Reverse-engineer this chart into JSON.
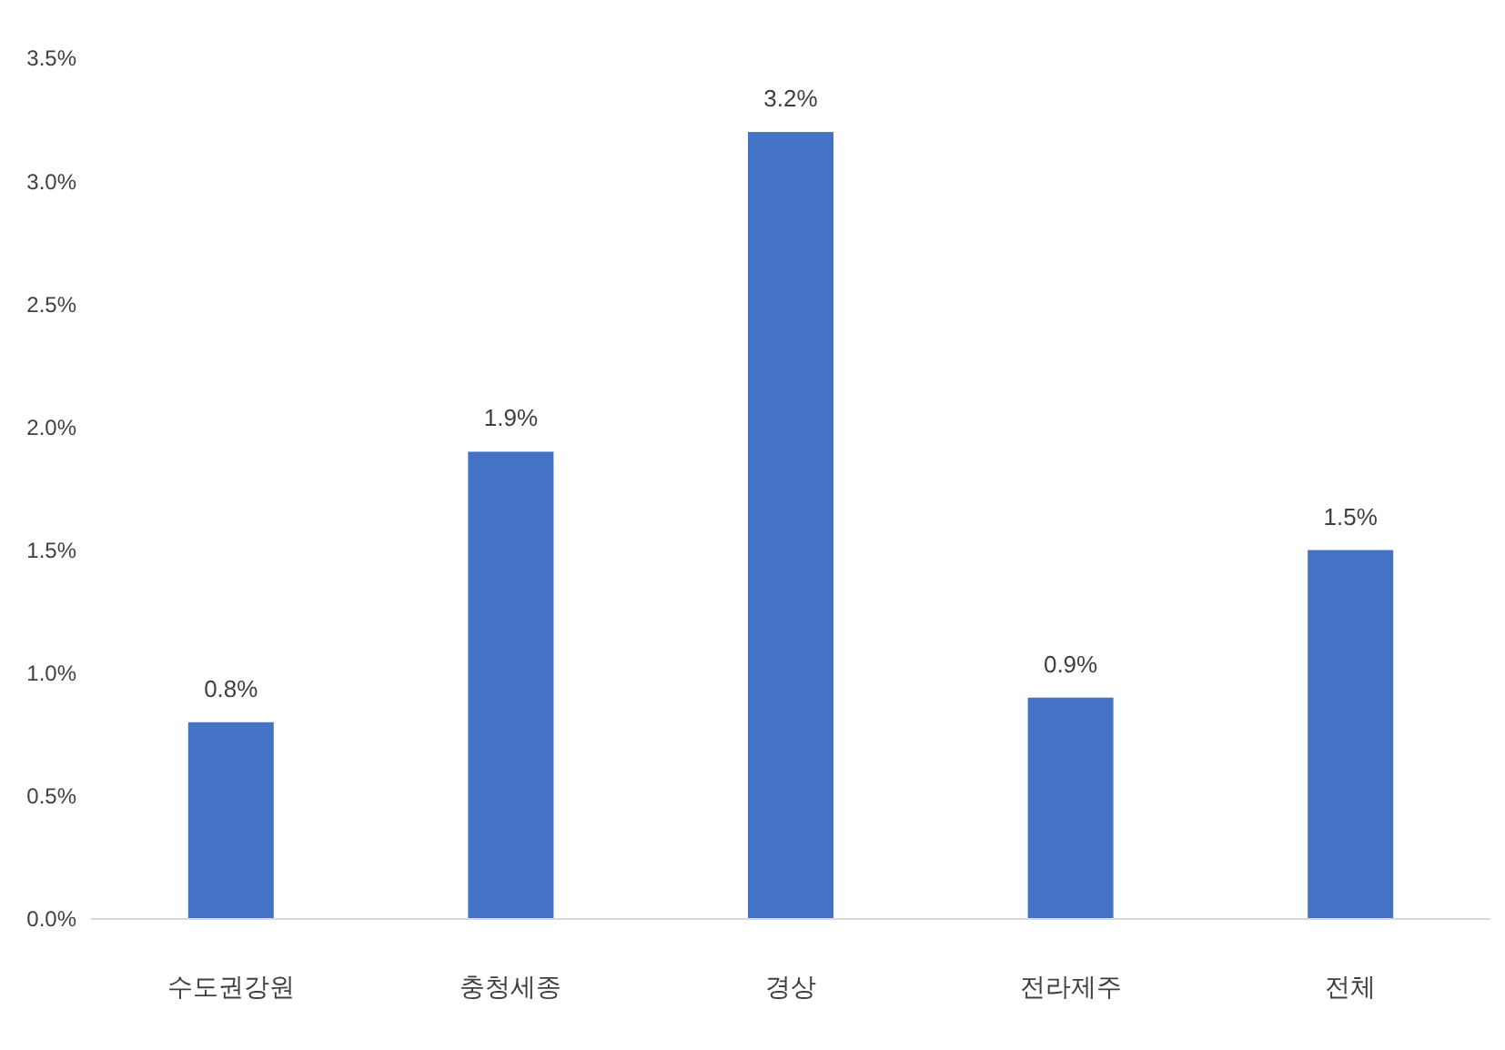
{
  "chart_data": {
    "type": "bar",
    "categories": [
      "수도권강원",
      "충청세종",
      "경상",
      "전라제주",
      "전체"
    ],
    "values": [
      0.8,
      1.9,
      3.2,
      0.9,
      1.5
    ],
    "value_labels": [
      "0.8%",
      "1.9%",
      "3.2%",
      "0.9%",
      "1.5%"
    ],
    "color": "#4472c4",
    "ylim": [
      0,
      3.5
    ],
    "yticks": [
      {
        "value": 0,
        "label": "0.0%"
      },
      {
        "value": 0.5,
        "label": "0.5%"
      },
      {
        "value": 1,
        "label": "1.0%"
      },
      {
        "value": 1.5,
        "label": "1.5%"
      },
      {
        "value": 2,
        "label": "2.0%"
      },
      {
        "value": 2.5,
        "label": "2.5%"
      },
      {
        "value": 3,
        "label": "3.0%"
      },
      {
        "value": 3.5,
        "label": "3.5%"
      }
    ],
    "grid": false
  }
}
